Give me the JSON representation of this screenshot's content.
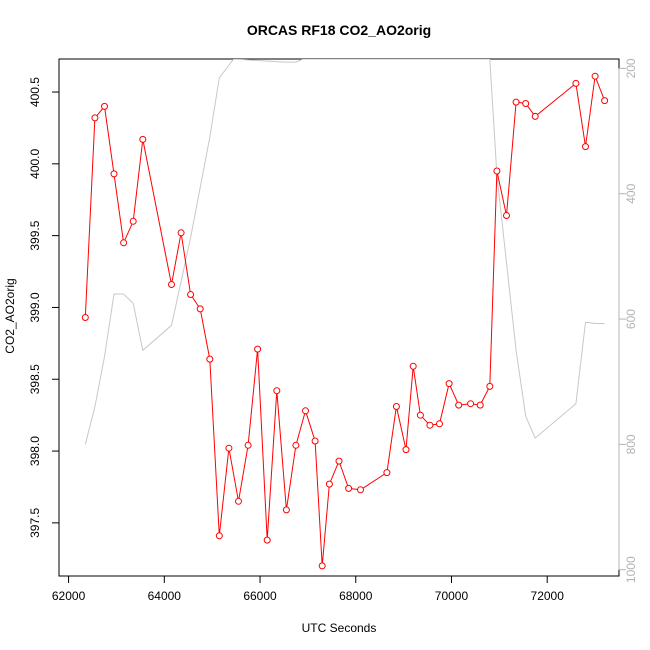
{
  "chart_data": {
    "type": "line",
    "title": "ORCAS RF18 CO2_AO2orig",
    "xlabel": "UTC Seconds",
    "ylabel": "CO2_AO2orig",
    "xlim": [
      61800,
      73500
    ],
    "ylim": [
      397.13,
      400.73
    ],
    "y2lim": [
      1010,
      185
    ],
    "x_ticks": [
      62000,
      64000,
      66000,
      68000,
      70000,
      72000
    ],
    "y_ticks": [
      397.5,
      398.0,
      398.5,
      399.0,
      399.5,
      400.0,
      400.5
    ],
    "y_tick_labels": [
      "397.5",
      "398.0",
      "398.5",
      "399.0",
      "399.5",
      "400.0",
      "400.5"
    ],
    "y2_ticks": [
      200,
      400,
      600,
      800,
      1000
    ],
    "grid": false,
    "series": [
      {
        "color": "#ff0000",
        "style": "line-with-open-circles",
        "axis": "left",
        "x": [
          62350,
          62550,
          62750,
          62950,
          63150,
          63350,
          63550,
          64150,
          64350,
          64550,
          64750,
          64950,
          65150,
          65350,
          65550,
          65750,
          65950,
          66150,
          66350,
          66550,
          66750,
          66950,
          67150,
          67300,
          67450,
          67650,
          67850,
          68100,
          68650,
          68850,
          69050,
          69200,
          69350,
          69550,
          69750,
          69950,
          70150,
          70400,
          70600,
          70800,
          70950,
          71150,
          71350,
          71550,
          71750,
          72600,
          72800,
          73000,
          73200
        ],
        "values": [
          398.93,
          400.32,
          400.4,
          399.93,
          399.45,
          399.6,
          400.17,
          399.16,
          399.52,
          399.09,
          398.99,
          398.64,
          397.41,
          398.02,
          397.65,
          398.04,
          398.71,
          397.38,
          398.42,
          397.59,
          398.04,
          398.28,
          398.07,
          397.2,
          397.77,
          397.93,
          397.74,
          397.73,
          397.85,
          398.31,
          398.01,
          398.59,
          398.25,
          398.18,
          398.19,
          398.47,
          398.32,
          398.33,
          398.32,
          398.45,
          399.95,
          399.64,
          400.43,
          400.42,
          400.33,
          400.56,
          400.12,
          400.61,
          400.44
        ]
      },
      {
        "color": "#c8c8c8",
        "style": "line",
        "axis": "right",
        "x": [
          62350,
          62550,
          62750,
          62950,
          63150,
          63350,
          63550,
          64150,
          64350,
          64550,
          64750,
          64950,
          65150,
          65450,
          66500,
          66750,
          66900,
          68800,
          70800,
          70950,
          71350,
          71550,
          71750,
          72600,
          72800,
          73000,
          73200
        ],
        "values": [
          800,
          740,
          660,
          560,
          560,
          575,
          650,
          610,
          540,
          470,
          390,
          310,
          215,
          185,
          190,
          190,
          185,
          185,
          185,
          370,
          650,
          755,
          790,
          735,
          605,
          607,
          607
        ]
      }
    ]
  }
}
